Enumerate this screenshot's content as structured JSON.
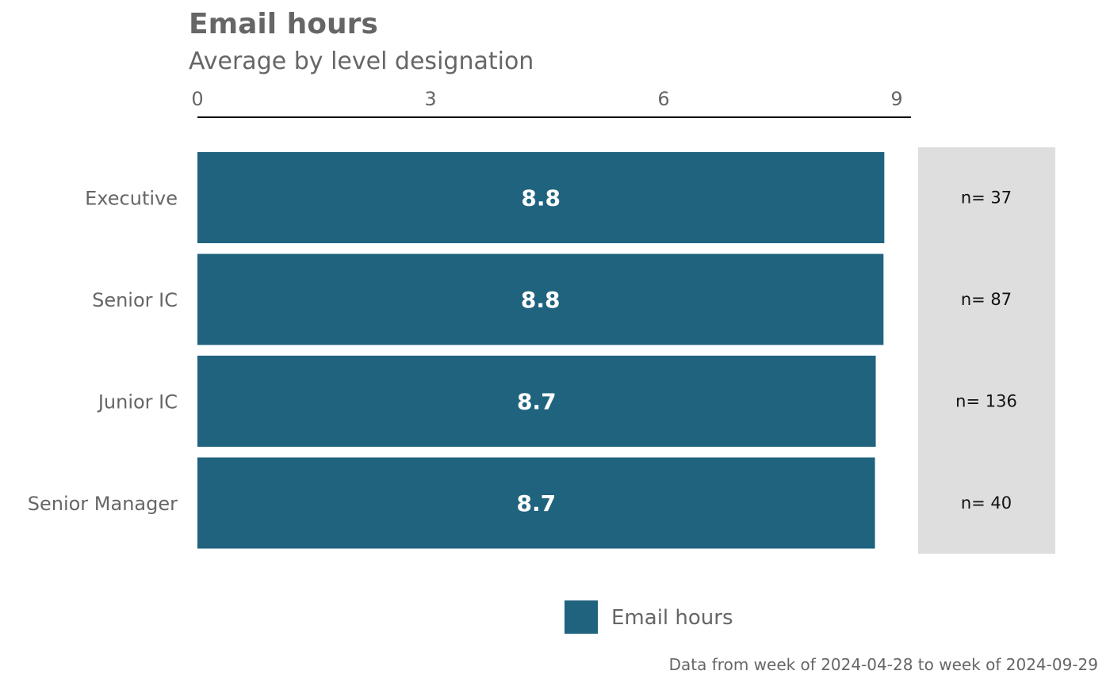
{
  "chart_data": {
    "type": "bar",
    "orientation": "horizontal",
    "title": "Email hours",
    "subtitle": "Average by level designation",
    "categories": [
      "Executive",
      "Senior IC",
      "Junior IC",
      "Senior Manager"
    ],
    "values": [
      8.84,
      8.83,
      8.73,
      8.72
    ],
    "value_labels": [
      "8.8",
      "8.8",
      "8.7",
      "8.7"
    ],
    "counts": [
      "n= 37",
      "n= 87",
      "n= 136",
      "n= 40"
    ],
    "xlim": [
      0,
      9
    ],
    "x_ticks": [
      0,
      3,
      6,
      9
    ],
    "x_tick_labels": [
      "0",
      "3",
      "6",
      "9"
    ],
    "legend": {
      "entries": [
        "Email hours"
      ],
      "position": "bottom"
    },
    "caption": "Data from week of 2024-04-28 to week of 2024-09-29",
    "grid": false,
    "colors": {
      "bar": "#1f637e",
      "count_panel": "#dedede",
      "axis": "#000000"
    }
  }
}
